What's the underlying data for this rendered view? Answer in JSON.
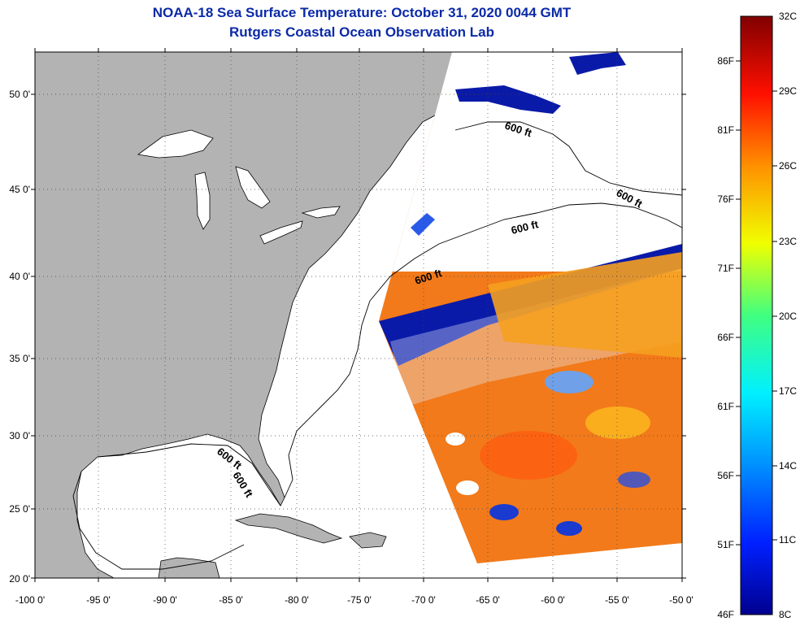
{
  "header": {
    "title": "NOAA-18 Sea Surface Temperature:  October 31, 2020 0044 GMT",
    "subtitle": "Rutgers Coastal Ocean Observation Lab"
  },
  "map": {
    "lon_ticks": [
      "-100 0'",
      "-95 0'",
      "-90 0'",
      "-85 0'",
      "-80 0'",
      "-75 0'",
      "-70 0'",
      "-65 0'",
      "-60 0'",
      "-55 0'",
      "-50 0'"
    ],
    "lat_ticks": [
      "50 0'",
      "45 0'",
      "40 0'",
      "35 0'",
      "30 0'",
      "25 0'",
      "20 0'"
    ],
    "isobath_label": "600 ft",
    "colors": {
      "land": "#b3b3b3",
      "ocean_nodata": "#ffffff",
      "cold": "#0a1aa8",
      "warm": "#f07818"
    }
  },
  "colorbar": {
    "fahrenheit_labels": [
      "86F",
      "81F",
      "76F",
      "71F",
      "66F",
      "61F",
      "56F",
      "51F",
      "46F"
    ],
    "celsius_labels": [
      "32C",
      "29C",
      "26C",
      "23C",
      "20C",
      "17C",
      "14C",
      "11C",
      "8C"
    ]
  }
}
